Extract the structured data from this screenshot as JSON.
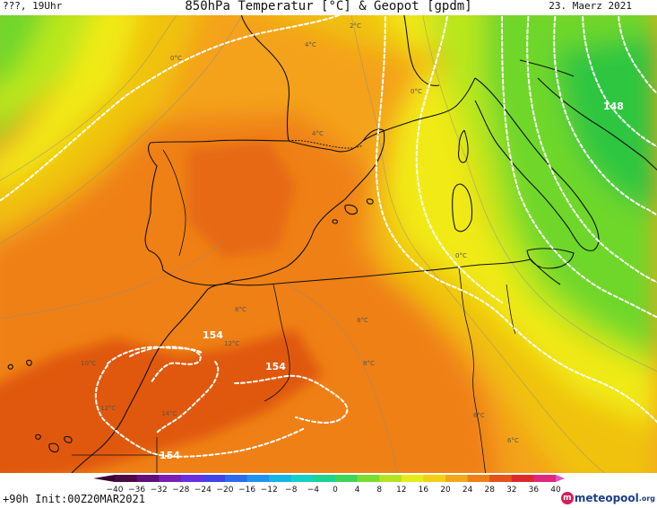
{
  "header": {
    "left_text": "???, 19Uhr",
    "title": "850hPa Temperatur [°C] & Geopot [gpdm]",
    "date": "23. Maerz 2021"
  },
  "footer": {
    "init_text": "+90h  Init:00Z20MAR2021",
    "logo_mark": "m",
    "logo_text": "meteopool",
    "logo_suffix": ".org"
  },
  "colors": {
    "orange_deep": "#e0580f",
    "orange": "#ef8015",
    "orange_light": "#f4a21c",
    "amber": "#f0c20a",
    "yellow": "#f1ea14",
    "lime": "#b9e71e",
    "green": "#6ed72a",
    "green_deep": "#2fc640"
  },
  "colorbar": {
    "tick_labels": [
      "−40",
      "−36",
      "−32",
      "−28",
      "−24",
      "−20",
      "−16",
      "−12",
      "−8",
      "−4",
      "0",
      "4",
      "8",
      "12",
      "16",
      "20",
      "24",
      "28",
      "32",
      "36",
      "40"
    ],
    "colors": [
      "#4a0a45",
      "#60107a",
      "#7a1fb5",
      "#6a2fe0",
      "#4143ea",
      "#2d6bee",
      "#1f93ef",
      "#15b5e8",
      "#14d0c8",
      "#1bd48e",
      "#3fd45a",
      "#79dd30",
      "#b3e41f",
      "#e6ec16",
      "#f4d012",
      "#f3a81a",
      "#ee7f16",
      "#e5521a",
      "#de2a2a",
      "#e0287a",
      "#e84fc2"
    ]
  },
  "contours": {
    "geopot_labels": [
      "154",
      "154",
      "154",
      "148"
    ],
    "temp_labels": [
      "0°C",
      "4°C",
      "2°C",
      "0°C",
      "4°C",
      "8°C",
      "10°C",
      "12°C",
      "14°C",
      "12°C",
      "8°C",
      "6°C",
      "8°C",
      "6°C",
      "0°C"
    ]
  }
}
